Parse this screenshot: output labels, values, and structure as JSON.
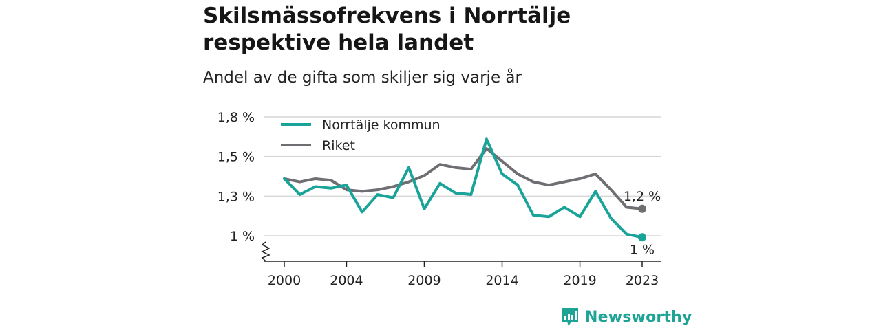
{
  "chart_data": {
    "type": "line",
    "title": [
      "Skilsmässofrekvens i Norrtälje",
      "respektive hela landet"
    ],
    "subtitle": "Andel av de gifta som skiljer sig varje år",
    "x": [
      2000,
      2001,
      2002,
      2003,
      2004,
      2005,
      2006,
      2007,
      2008,
      2009,
      2010,
      2011,
      2012,
      2013,
      2014,
      2015,
      2016,
      2017,
      2018,
      2019,
      2020,
      2021,
      2022,
      2023
    ],
    "x_ticks": [
      2000,
      2004,
      2009,
      2014,
      2019,
      2023
    ],
    "y_ticks": [
      {
        "value": 1.0,
        "label": "1 %"
      },
      {
        "value": 1.25,
        "label": "1,3 %"
      },
      {
        "value": 1.5,
        "label": "1,5 %"
      },
      {
        "value": 1.75,
        "label": "1,8 %"
      }
    ],
    "ylim": [
      0.85,
      1.75
    ],
    "y_axis_break": true,
    "grid": true,
    "legend_position": "top-left",
    "series": [
      {
        "name": "Norrtälje kommun",
        "color": "#1aa398",
        "values": [
          1.36,
          1.26,
          1.31,
          1.3,
          1.32,
          1.15,
          1.26,
          1.24,
          1.43,
          1.17,
          1.33,
          1.27,
          1.26,
          1.61,
          1.39,
          1.32,
          1.13,
          1.12,
          1.18,
          1.12,
          1.28,
          1.11,
          1.01,
          0.99
        ],
        "end_label": "1 %"
      },
      {
        "name": "Riket",
        "color": "#6e6e73",
        "values": [
          1.36,
          1.34,
          1.36,
          1.35,
          1.29,
          1.28,
          1.29,
          1.31,
          1.34,
          1.38,
          1.45,
          1.43,
          1.42,
          1.55,
          1.47,
          1.39,
          1.34,
          1.32,
          1.34,
          1.36,
          1.39,
          1.29,
          1.18,
          1.17
        ],
        "end_label": "1,2 %"
      }
    ]
  },
  "brand": {
    "name": "Newsworthy",
    "color": "#1fa394"
  }
}
